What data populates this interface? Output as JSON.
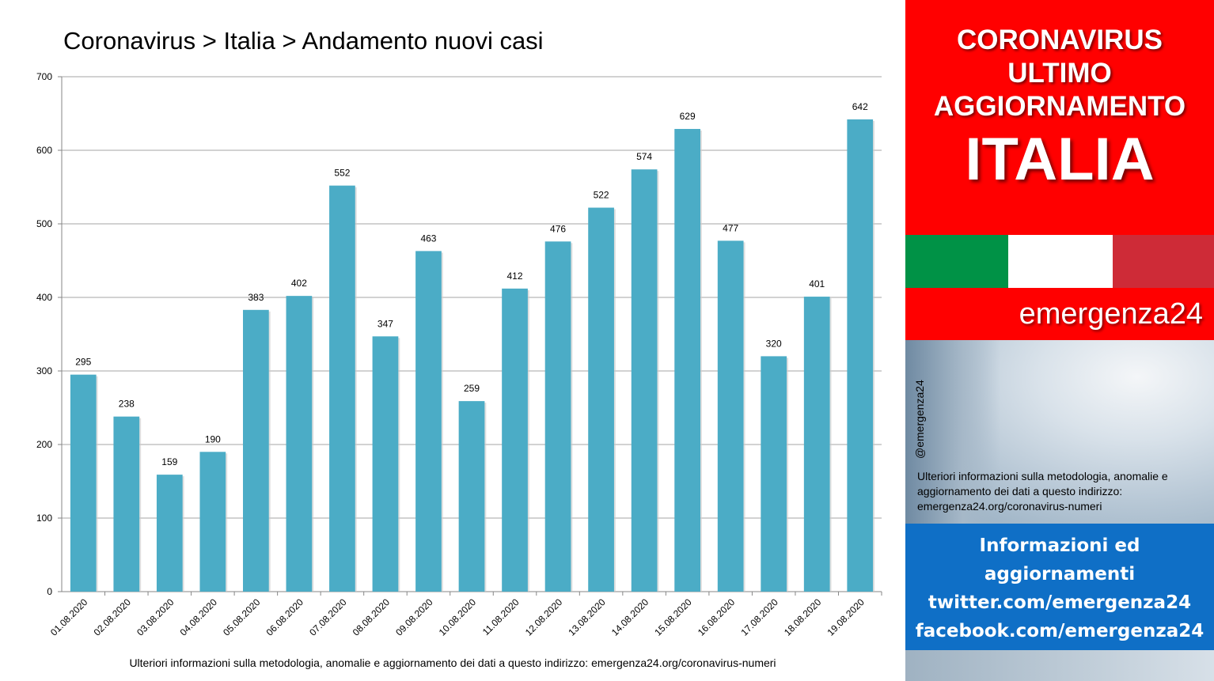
{
  "title": "Coronavirus > Italia > Andamento nuovi casi",
  "footnote": "Ulteriori informazioni sulla metodologia, anomalie e aggiornamento dei dati a questo indirizzo: emergenza24.org/coronavirus-numeri",
  "chart_data": {
    "type": "bar",
    "categories": [
      "01.08.2020",
      "02.08.2020",
      "03.08.2020",
      "04.08.2020",
      "05.08.2020",
      "06.08.2020",
      "07.08.2020",
      "08.08.2020",
      "09.08.2020",
      "10.08.2020",
      "11.08.2020",
      "12.08.2020",
      "13.08.2020",
      "14.08.2020",
      "15.08.2020",
      "16.08.2020",
      "17.08.2020",
      "18.08.2020",
      "19.08.2020"
    ],
    "values": [
      295,
      238,
      159,
      190,
      383,
      402,
      552,
      347,
      463,
      259,
      412,
      476,
      522,
      574,
      629,
      477,
      320,
      401,
      642
    ],
    "title": "Coronavirus > Italia > Andamento nuovi casi",
    "xlabel": "",
    "ylabel": "",
    "ylim": [
      0,
      700
    ],
    "yticks": [
      0,
      100,
      200,
      300,
      400,
      500,
      600,
      700
    ],
    "grid": true,
    "legend": "none",
    "bar_color": "#4bacc6"
  },
  "sidebar": {
    "header_lines": [
      "CORONAVIRUS",
      "ULTIMO",
      "AGGIORNAMENTO"
    ],
    "country": "ITALIA",
    "brand": "emergenza24",
    "handle": "@emergenza24",
    "note": "Ulteriori informazioni sulla metodologia, anomalie e aggiornamento dei dati a questo indirizzo: emergenza24.org/coronavirus-numeri",
    "info_lines": [
      "Informazioni ed",
      "aggiornamenti",
      "twitter.com/emergenza24",
      "facebook.com/emergenza24"
    ],
    "colors": {
      "red": "#ff0000",
      "flag_green": "#009246",
      "flag_white": "#ffffff",
      "flag_red": "#ce2b37",
      "blue": "#0f6fc6"
    }
  }
}
